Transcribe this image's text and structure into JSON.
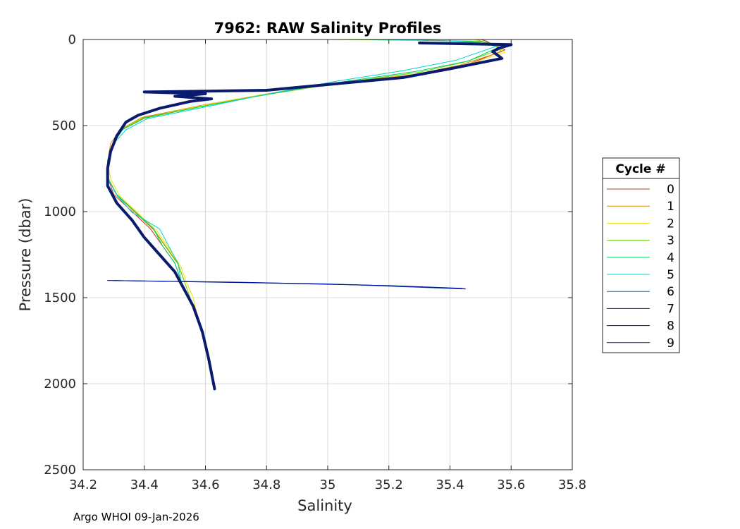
{
  "chart_data": {
    "type": "line",
    "title": "7962: RAW Salinity Profiles",
    "xlabel": "Salinity",
    "ylabel": "Pressure (dbar)",
    "xlim": [
      34.2,
      35.8
    ],
    "ylim": [
      0,
      2500
    ],
    "y_reversed": true,
    "grid": true,
    "xticks": [
      "34.2",
      "34.4",
      "34.6",
      "34.8",
      "35",
      "35.2",
      "35.4",
      "35.6",
      "35.8"
    ],
    "xtick_values": [
      34.2,
      34.4,
      34.6,
      34.8,
      35.0,
      35.2,
      35.4,
      35.6,
      35.8
    ],
    "yticks": [
      "0",
      "500",
      "1000",
      "1500",
      "2000",
      "2500"
    ],
    "ytick_values": [
      0,
      500,
      1000,
      1500,
      2000,
      2500
    ],
    "legend": {
      "title": "Cycle #",
      "position": "right"
    },
    "series": [
      {
        "name": "0",
        "color": "#c0392b",
        "width": 1,
        "points": [
          [
            35.5,
            0
          ],
          [
            35.52,
            10
          ],
          [
            35.54,
            30
          ],
          [
            35.58,
            60
          ],
          [
            35.45,
            150
          ],
          [
            35.3,
            200
          ],
          [
            35.0,
            260
          ],
          [
            34.8,
            320
          ],
          [
            34.6,
            380
          ],
          [
            34.4,
            450
          ],
          [
            34.33,
            520
          ],
          [
            34.3,
            600
          ],
          [
            34.28,
            700
          ],
          [
            34.28,
            800
          ],
          [
            34.3,
            900
          ],
          [
            34.36,
            1000
          ],
          [
            34.42,
            1100
          ],
          [
            34.46,
            1200
          ],
          [
            34.5,
            1300
          ],
          [
            34.52,
            1400
          ]
        ]
      },
      {
        "name": "1",
        "color": "#d38b00",
        "width": 1,
        "points": [
          [
            35.49,
            0
          ],
          [
            35.51,
            15
          ],
          [
            35.55,
            40
          ],
          [
            35.57,
            70
          ],
          [
            35.43,
            150
          ],
          [
            35.28,
            205
          ],
          [
            34.98,
            262
          ],
          [
            34.78,
            322
          ],
          [
            34.58,
            385
          ],
          [
            34.39,
            455
          ],
          [
            34.32,
            525
          ],
          [
            34.29,
            605
          ],
          [
            34.28,
            705
          ],
          [
            34.28,
            805
          ],
          [
            34.31,
            905
          ],
          [
            34.37,
            1005
          ],
          [
            34.43,
            1105
          ],
          [
            34.47,
            1205
          ],
          [
            34.51,
            1305
          ],
          [
            34.53,
            1400
          ]
        ]
      },
      {
        "name": "2",
        "color": "#f0e000",
        "width": 1,
        "points": [
          [
            35.48,
            0
          ],
          [
            35.52,
            20
          ],
          [
            35.56,
            45
          ],
          [
            35.58,
            75
          ],
          [
            35.44,
            155
          ],
          [
            35.26,
            210
          ],
          [
            34.97,
            265
          ],
          [
            34.77,
            325
          ],
          [
            34.57,
            390
          ],
          [
            34.39,
            460
          ],
          [
            34.32,
            530
          ],
          [
            34.3,
            610
          ],
          [
            34.28,
            710
          ],
          [
            34.29,
            810
          ],
          [
            34.32,
            910
          ],
          [
            34.38,
            1010
          ],
          [
            34.44,
            1110
          ],
          [
            34.48,
            1210
          ],
          [
            34.52,
            1320
          ],
          [
            34.54,
            1420
          ],
          [
            34.56,
            1500
          ],
          [
            34.57,
            1580
          ]
        ]
      },
      {
        "name": "3",
        "color": "#66d000",
        "width": 1,
        "points": [
          [
            35.0,
            0
          ],
          [
            35.3,
            5
          ],
          [
            35.5,
            10
          ],
          [
            35.55,
            30
          ],
          [
            35.57,
            55
          ],
          [
            35.45,
            130
          ],
          [
            35.3,
            190
          ],
          [
            35.05,
            250
          ],
          [
            34.8,
            320
          ],
          [
            34.6,
            385
          ],
          [
            34.4,
            455
          ],
          [
            34.33,
            520
          ],
          [
            34.3,
            600
          ],
          [
            34.28,
            700
          ],
          [
            34.28,
            800
          ],
          [
            34.31,
            900
          ],
          [
            34.37,
            1000
          ],
          [
            34.43,
            1100
          ],
          [
            34.47,
            1200
          ],
          [
            34.51,
            1300
          ],
          [
            34.53,
            1400
          ],
          [
            34.55,
            1500
          ]
        ]
      },
      {
        "name": "4",
        "color": "#00d060",
        "width": 1,
        "points": [
          [
            35.1,
            0
          ],
          [
            35.35,
            5
          ],
          [
            35.52,
            15
          ],
          [
            35.56,
            45
          ],
          [
            35.46,
            125
          ],
          [
            35.29,
            185
          ],
          [
            35.04,
            248
          ],
          [
            34.79,
            322
          ],
          [
            34.59,
            388
          ],
          [
            34.4,
            458
          ],
          [
            34.33,
            522
          ],
          [
            34.3,
            602
          ],
          [
            34.28,
            702
          ],
          [
            34.28,
            802
          ],
          [
            34.31,
            902
          ],
          [
            34.37,
            1002
          ],
          [
            34.43,
            1100
          ],
          [
            34.46,
            1200
          ],
          [
            34.5,
            1300
          ],
          [
            34.52,
            1400
          ]
        ]
      },
      {
        "name": "5",
        "color": "#00d0d0",
        "width": 1,
        "points": [
          [
            35.2,
            0
          ],
          [
            35.4,
            8
          ],
          [
            35.5,
            20
          ],
          [
            35.55,
            40
          ],
          [
            35.42,
            120
          ],
          [
            35.25,
            180
          ],
          [
            35.02,
            245
          ],
          [
            34.78,
            325
          ],
          [
            34.6,
            392
          ],
          [
            34.41,
            460
          ],
          [
            34.34,
            525
          ],
          [
            34.3,
            605
          ],
          [
            34.28,
            705
          ],
          [
            34.28,
            805
          ],
          [
            34.31,
            905
          ],
          [
            34.36,
            1005
          ],
          [
            34.45,
            1100
          ],
          [
            34.48,
            1200
          ],
          [
            34.51,
            1300
          ],
          [
            34.52,
            1400
          ]
        ]
      },
      {
        "name": "6",
        "color": "#0060d0",
        "width": 1,
        "points": [
          [
            34.28,
            1400
          ],
          [
            34.6,
            1408
          ],
          [
            35.0,
            1420
          ],
          [
            35.45,
            1450
          ]
        ]
      },
      {
        "name": "7",
        "color": "#0020c0",
        "width": 1,
        "points": [
          [
            34.28,
            1400
          ],
          [
            34.7,
            1410
          ],
          [
            35.1,
            1425
          ],
          [
            35.45,
            1448
          ]
        ]
      },
      {
        "name": "8",
        "color": "#00108f",
        "width": 1,
        "points": [
          [
            34.3,
            1401
          ],
          [
            34.8,
            1415
          ],
          [
            35.2,
            1430
          ],
          [
            35.44,
            1446
          ]
        ]
      },
      {
        "name": "9",
        "color": "#0a1a6e",
        "width": 4,
        "points": [
          [
            35.3,
            20
          ],
          [
            35.45,
            25
          ],
          [
            35.6,
            30
          ],
          [
            35.56,
            50
          ],
          [
            35.54,
            70
          ],
          [
            35.57,
            110
          ],
          [
            35.4,
            170
          ],
          [
            35.25,
            220
          ],
          [
            35.0,
            262
          ],
          [
            34.8,
            295
          ],
          [
            34.6,
            300
          ],
          [
            34.4,
            305
          ],
          [
            34.6,
            315
          ],
          [
            34.5,
            330
          ],
          [
            34.62,
            345
          ],
          [
            34.55,
            360
          ],
          [
            34.45,
            400
          ],
          [
            34.38,
            440
          ],
          [
            34.34,
            480
          ],
          [
            34.31,
            560
          ],
          [
            34.29,
            650
          ],
          [
            34.28,
            750
          ],
          [
            34.28,
            850
          ],
          [
            34.31,
            950
          ],
          [
            34.36,
            1050
          ],
          [
            34.4,
            1150
          ],
          [
            34.45,
            1250
          ],
          [
            34.5,
            1350
          ],
          [
            34.53,
            1450
          ],
          [
            34.56,
            1550
          ],
          [
            34.59,
            1700
          ],
          [
            34.61,
            1850
          ],
          [
            34.63,
            2030
          ]
        ]
      }
    ]
  },
  "footer": {
    "text": "Argo WHOI 09-Jan-2026"
  }
}
